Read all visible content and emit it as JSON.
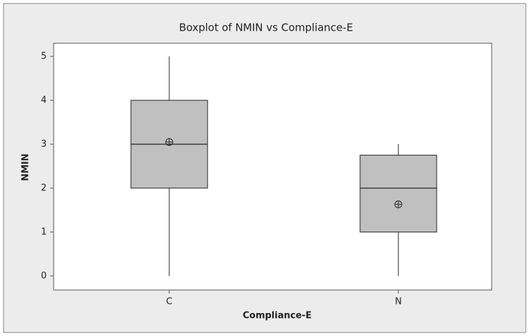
{
  "chart_data": {
    "type": "box",
    "title": "Boxplot of NMIN vs Compliance-E",
    "x_label": "Compliance-E",
    "y_label": "NMIN",
    "categories": [
      "C",
      "N"
    ],
    "boxes": [
      {
        "min": 0,
        "q1": 2,
        "median": 3,
        "q3": 4,
        "max": 5,
        "mean": 3.05
      },
      {
        "min": 0,
        "q1": 1,
        "median": 2,
        "q3": 2.75,
        "max": 3,
        "mean": 1.63
      }
    ],
    "color": "#c0c0c0",
    "ylim": [
      -0.32,
      5.3
    ],
    "yticks": [
      0,
      1,
      2,
      3,
      4,
      5
    ]
  }
}
